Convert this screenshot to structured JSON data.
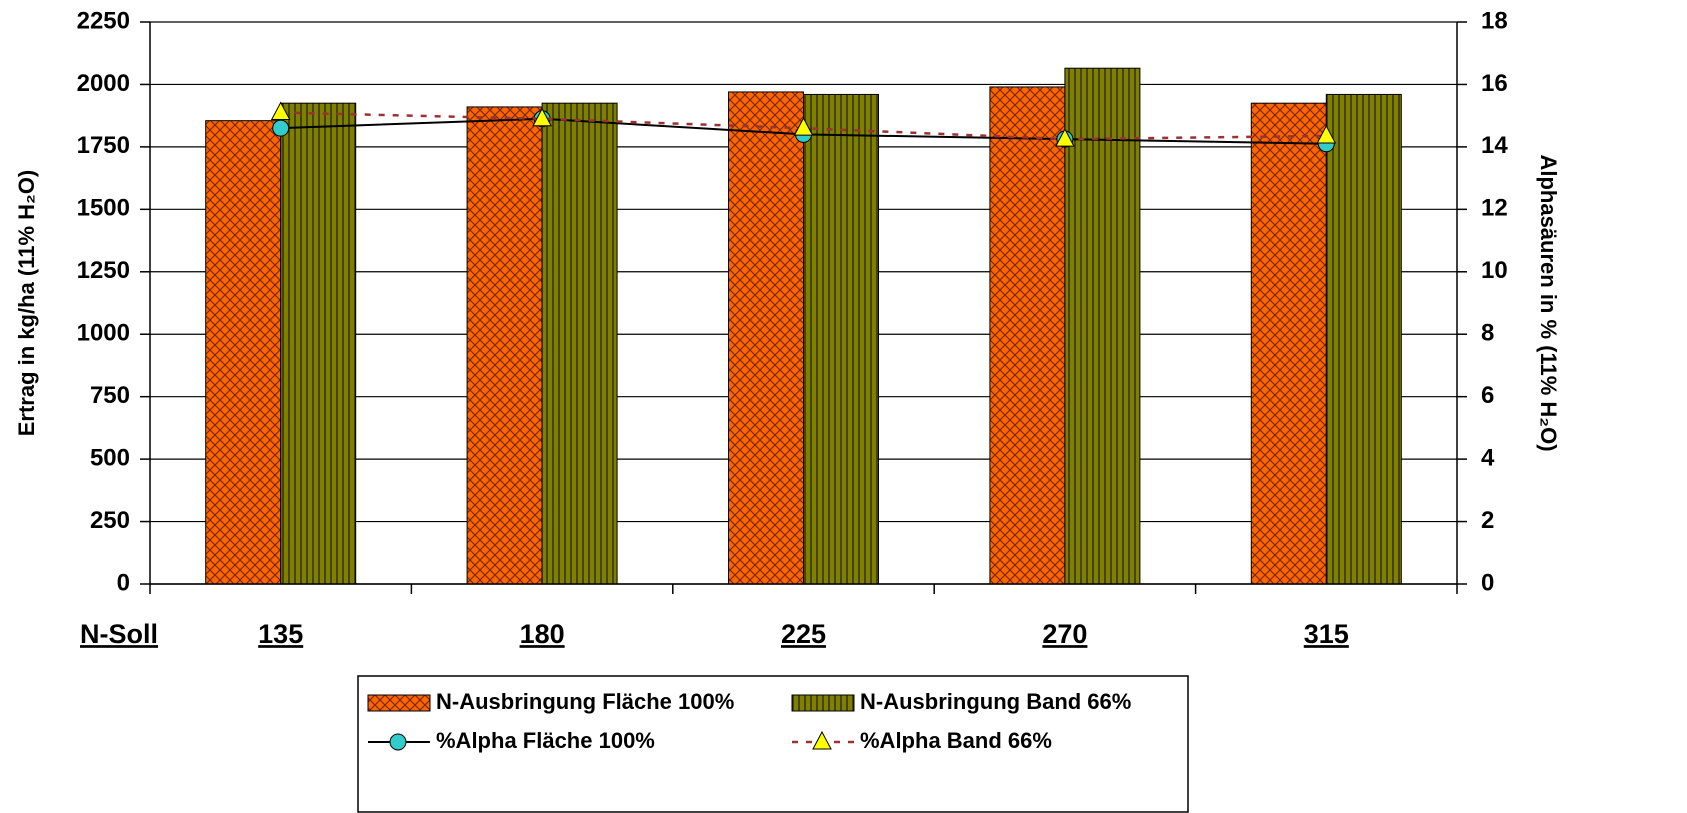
{
  "chart_data": {
    "type": "bar",
    "y_label": "Ertrag in kg/ha (11% H₂O)",
    "y2_label": "Alphasäuren in % (11% H₂O)",
    "x_label": "N-Soll",
    "categories": [
      "135",
      "180",
      "225",
      "270",
      "315"
    ],
    "series": [
      {
        "name": "N-Ausbringung Fläche 100%",
        "type": "bar",
        "color": "#ff6600",
        "pattern": "crosshatch",
        "values": [
          1855,
          1910,
          1970,
          1990,
          1925
        ]
      },
      {
        "name": "N-Ausbringung Band 66%",
        "type": "bar",
        "color": "#808000",
        "pattern": "vertical",
        "values": [
          1925,
          1925,
          1960,
          2065,
          1960
        ]
      },
      {
        "name": "%Alpha Fläche 100%",
        "type": "line",
        "axis": "y2",
        "color": "#000000",
        "marker": "circle",
        "marker_color": "#33cccc",
        "dashed": false,
        "values": [
          14.6,
          14.9,
          14.4,
          14.25,
          14.1
        ]
      },
      {
        "name": "%Alpha Band 66%",
        "type": "line",
        "axis": "y2",
        "color": "#993333",
        "marker": "triangle",
        "marker_color": "#ffff00",
        "dashed": true,
        "values": [
          15.1,
          14.9,
          14.6,
          14.25,
          14.35
        ]
      }
    ],
    "ylim": [
      0,
      2250
    ],
    "yticks": [
      0,
      250,
      500,
      750,
      1000,
      1250,
      1500,
      1750,
      2000,
      2250
    ],
    "y2lim": [
      0,
      18
    ],
    "y2ticks": [
      0,
      2,
      4,
      6,
      8,
      10,
      12,
      14,
      16,
      18
    ],
    "grid": true
  }
}
